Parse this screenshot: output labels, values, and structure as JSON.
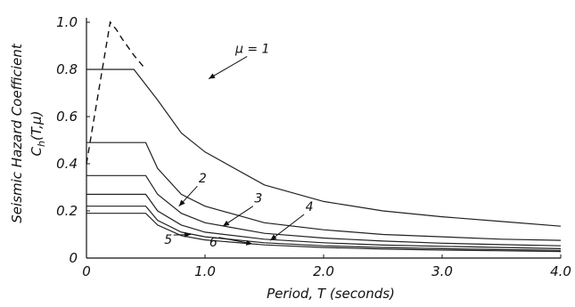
{
  "chart_data": {
    "type": "line",
    "xlabel": "Period, T (seconds)",
    "ylabel_line1": "Seismic Hazard Coefficient",
    "ylabel_line2_main": "C",
    "ylabel_line2_sub": "h",
    "ylabel_line2_args": "(T,μ)",
    "xlim": [
      0,
      4.0
    ],
    "ylim": [
      0,
      1.0
    ],
    "x_tick_labels": [
      "0",
      "1.0",
      "2.0",
      "3.0",
      "4.0"
    ],
    "x_tick_values": [
      0,
      1.0,
      2.0,
      3.0,
      4.0
    ],
    "y_tick_labels": [
      "0",
      "0.2",
      "0.4",
      "0.6",
      "0.8",
      "1.0"
    ],
    "y_tick_values": [
      0,
      0.2,
      0.4,
      0.6,
      0.8,
      1.0
    ],
    "grid": false,
    "elastic_dashed": {
      "x": [
        0,
        0.2,
        0.25,
        0.3,
        0.4,
        0.5
      ],
      "y": [
        0.4,
        1.0,
        0.97,
        0.93,
        0.86,
        0.8
      ]
    },
    "series": [
      {
        "label": "μ = 1",
        "plateau": 0.8,
        "corner": 0.4,
        "tail_values": [
          [
            0.6,
            0.67
          ],
          [
            0.8,
            0.53
          ],
          [
            1.0,
            0.45
          ],
          [
            1.5,
            0.31
          ],
          [
            2.0,
            0.24
          ],
          [
            2.5,
            0.2
          ],
          [
            3.0,
            0.175
          ],
          [
            3.5,
            0.155
          ],
          [
            4.0,
            0.135
          ]
        ]
      },
      {
        "label": "2",
        "plateau": 0.49,
        "corner": 0.5,
        "tail_values": [
          [
            0.6,
            0.38
          ],
          [
            0.8,
            0.27
          ],
          [
            1.0,
            0.22
          ],
          [
            1.5,
            0.15
          ],
          [
            2.0,
            0.12
          ],
          [
            2.5,
            0.1
          ],
          [
            3.0,
            0.09
          ],
          [
            3.5,
            0.08
          ],
          [
            4.0,
            0.075
          ]
        ]
      },
      {
        "label": "3",
        "plateau": 0.35,
        "corner": 0.5,
        "tail_values": [
          [
            0.6,
            0.27
          ],
          [
            0.8,
            0.19
          ],
          [
            1.0,
            0.15
          ],
          [
            1.5,
            0.105
          ],
          [
            2.0,
            0.085
          ],
          [
            2.5,
            0.072
          ],
          [
            3.0,
            0.063
          ],
          [
            3.5,
            0.057
          ],
          [
            4.0,
            0.052
          ]
        ]
      },
      {
        "label": "4",
        "plateau": 0.27,
        "corner": 0.5,
        "tail_values": [
          [
            0.6,
            0.2
          ],
          [
            0.8,
            0.14
          ],
          [
            1.0,
            0.11
          ],
          [
            1.5,
            0.08
          ],
          [
            2.0,
            0.065
          ],
          [
            2.5,
            0.055
          ],
          [
            3.0,
            0.05
          ],
          [
            3.5,
            0.045
          ],
          [
            4.0,
            0.04
          ]
        ]
      },
      {
        "label": "5",
        "plateau": 0.22,
        "corner": 0.5,
        "tail_values": [
          [
            0.6,
            0.16
          ],
          [
            0.8,
            0.11
          ],
          [
            1.0,
            0.09
          ],
          [
            1.5,
            0.065
          ],
          [
            2.0,
            0.052
          ],
          [
            2.5,
            0.045
          ],
          [
            3.0,
            0.04
          ],
          [
            3.5,
            0.036
          ],
          [
            4.0,
            0.033
          ]
        ]
      },
      {
        "label": "6",
        "plateau": 0.19,
        "corner": 0.5,
        "tail_values": [
          [
            0.6,
            0.14
          ],
          [
            0.8,
            0.095
          ],
          [
            1.0,
            0.077
          ],
          [
            1.5,
            0.056
          ],
          [
            2.0,
            0.045
          ],
          [
            2.5,
            0.038
          ],
          [
            3.0,
            0.034
          ],
          [
            3.5,
            0.031
          ],
          [
            4.0,
            0.028
          ]
        ]
      }
    ],
    "curve_labels": [
      {
        "text": "μ = 1",
        "x": 1.4,
        "y": 0.87,
        "arrow_to": [
          1.03,
          0.76
        ]
      },
      {
        "text": "2",
        "x": 0.98,
        "y": 0.32,
        "arrow_to": [
          0.78,
          0.22
        ]
      },
      {
        "text": "3",
        "x": 1.45,
        "y": 0.235,
        "arrow_to": [
          1.15,
          0.135
        ]
      },
      {
        "text": "4",
        "x": 1.88,
        "y": 0.2,
        "arrow_to": [
          1.55,
          0.075
        ]
      },
      {
        "text": "5",
        "x": 0.69,
        "y": 0.06,
        "arrow_to": [
          0.88,
          0.1
        ]
      },
      {
        "text": "6",
        "x": 1.07,
        "y": 0.05,
        "arrow_to": [
          1.4,
          0.06
        ]
      }
    ]
  }
}
